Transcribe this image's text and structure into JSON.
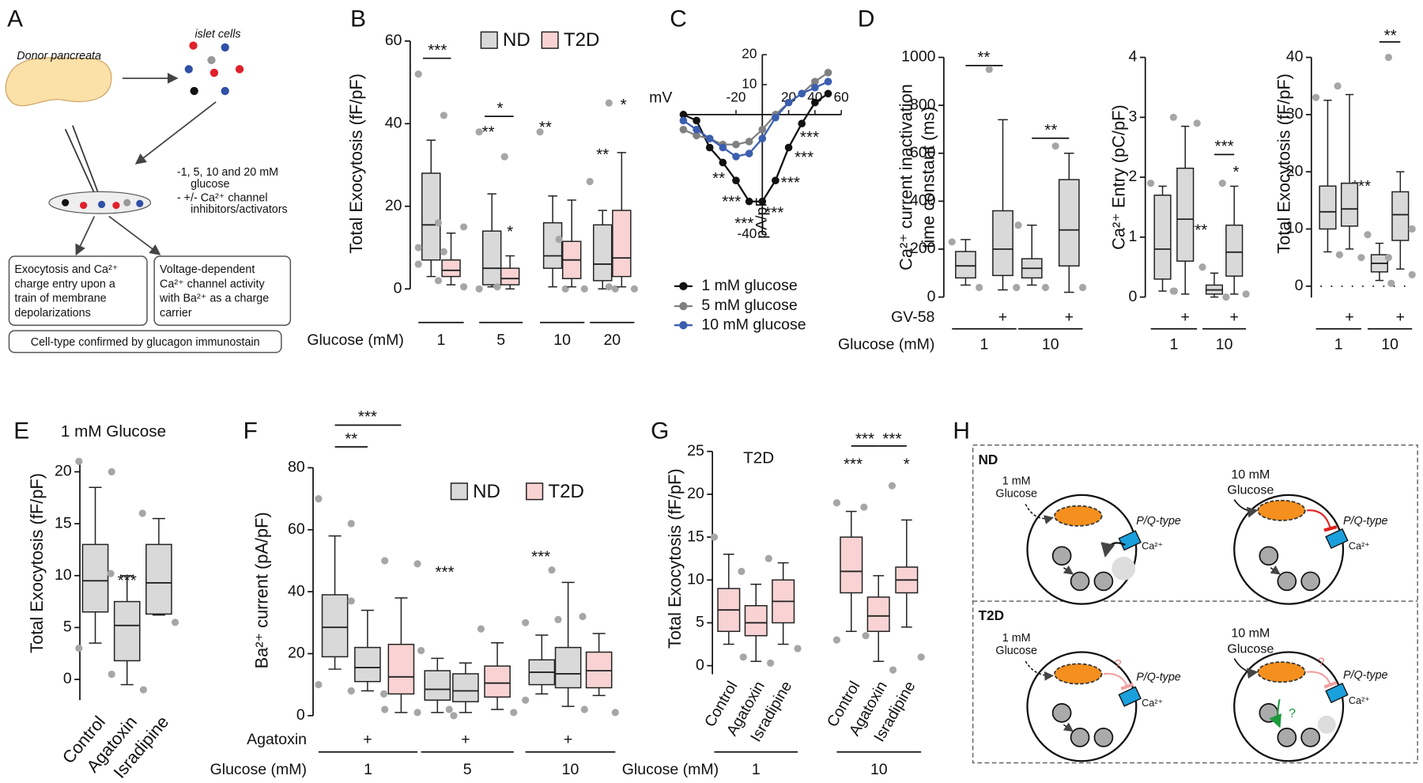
{
  "panel_a": {
    "label": "A",
    "pancreas": "Donor pancreata",
    "islets": "islet cells",
    "conditions": [
      "-1, 5, 10 and 20 mM",
      "glucose",
      "- +/- Ca²⁺ channel",
      "inhibitors/activators"
    ],
    "box_left": [
      "Exocytosis and Ca²⁺",
      "charge entry upon a",
      "train of membrane",
      "depolarizations"
    ],
    "box_right": [
      "Voltage-dependent",
      "Ca²⁺ channel activity",
      "with Ba²⁺ as a charge",
      "carrier"
    ],
    "box_bottom": "Cell-type confirmed by glucagon immunostain"
  },
  "panel_h": {
    "label": "H",
    "nd": "ND",
    "t2d": "T2D",
    "low_glucose": [
      "1 mM",
      "Glucose"
    ],
    "high_glucose": [
      "10 mM",
      "Glucose"
    ],
    "channel": "P/Q-type",
    "ion": "Ca²⁺",
    "unknown": "?"
  },
  "chart_data": [
    {
      "label": "B",
      "type": "box",
      "y_label": "Total Exocytosis (fF/pF)",
      "x_label": "Glucose (mM)",
      "categories": [
        "1",
        "5",
        "10",
        "20"
      ],
      "ylim": [
        0,
        60
      ],
      "yticks": [
        0,
        20,
        40,
        60
      ],
      "series": [
        {
          "name": "ND",
          "color": "#d9d9d9",
          "whisker_low": [
            3,
            0.5,
            0.5,
            0
          ],
          "q1": [
            7,
            1,
            5,
            2
          ],
          "median": [
            15.5,
            5,
            8,
            6
          ],
          "q3": [
            28,
            14,
            16,
            15.5
          ],
          "whisker_high": [
            36,
            23,
            22.5,
            19
          ],
          "outliers": [
            [
              52,
              42,
              10,
              9,
              6
            ],
            [
              38,
              32,
              0
            ],
            [
              38,
              0
            ],
            [
              26,
              0
            ]
          ]
        },
        {
          "name": "T2D",
          "color": "#f9d3d3",
          "whisker_low": [
            1,
            0,
            0.5,
            0.5
          ],
          "q1": [
            3,
            1,
            2.5,
            3
          ],
          "median": [
            4.5,
            2.5,
            7,
            7.5
          ],
          "q3": [
            7,
            5,
            11.5,
            19
          ],
          "whisker_high": [
            13.5,
            8,
            21.5,
            33
          ],
          "outliers": [
            [
              16,
              15,
              2,
              0.5
            ],
            [
              0.5
            ],
            [
              12,
              0
            ],
            [
              45,
              0,
              0.5
            ]
          ]
        }
      ],
      "annotations": [
        "***",
        "**",
        "*",
        "*",
        "**",
        "**",
        "*"
      ]
    },
    {
      "label": "C",
      "type": "line",
      "x_label": "mV",
      "y_label": "pA/pF",
      "x": [
        -60,
        -50,
        -40,
        -30,
        -20,
        -10,
        0,
        10,
        20,
        30,
        40,
        50
      ],
      "xlim": [
        -60,
        60
      ],
      "ylim": [
        -40,
        20
      ],
      "xticks": [
        -20,
        20,
        40,
        60
      ],
      "yticks": [
        -40,
        10,
        20
      ],
      "series": [
        {
          "name": "1 mM glucose",
          "color": "#111111",
          "values": [
            0,
            -2,
            -11,
            -16,
            -22,
            -29,
            -29,
            -22,
            -11,
            -3,
            4,
            7
          ]
        },
        {
          "name": "5 mM glucose",
          "color": "#808080",
          "values": [
            -5,
            -7,
            -8,
            -10,
            -10,
            -9,
            -5,
            0,
            4,
            7,
            11,
            14
          ]
        },
        {
          "name": "10 mM glucose",
          "color": "#3b5fb0",
          "values": [
            -2,
            -5,
            -8,
            -11,
            -14,
            -13,
            -8,
            -1,
            4,
            7,
            9,
            11
          ]
        }
      ],
      "annotations": [
        "**",
        "***",
        "***",
        "***",
        "***",
        "***",
        "***"
      ]
    },
    {
      "label": "D",
      "type": "box",
      "y_label": [
        "Ca²⁺ current inactivation",
        "time constant (ms)"
      ],
      "x_label": "Glucose (mM)",
      "treatment": "GV-58",
      "categories": [
        "1",
        "10"
      ],
      "ylim": [
        0,
        1000
      ],
      "yticks": [
        0,
        200,
        400,
        600,
        800,
        1000
      ],
      "series": [
        {
          "color": "#d9d9d9",
          "whisker_low": [
            50,
            50
          ],
          "q1": [
            80,
            80
          ],
          "median": [
            130,
            120
          ],
          "q3": [
            190,
            160
          ],
          "whisker_high": [
            240,
            300
          ],
          "outliers": [
            [
              230,
              40
            ],
            [
              300,
              40
            ]
          ]
        },
        {
          "color": "#d9d9d9",
          "marker": "+",
          "whisker_low": [
            30,
            20
          ],
          "q1": [
            90,
            130
          ],
          "median": [
            200,
            280
          ],
          "q3": [
            360,
            490
          ],
          "whisker_high": [
            740,
            600
          ],
          "outliers": [
            [
              950,
              40
            ],
            [
              630,
              40
            ]
          ]
        }
      ],
      "annotations": [
        "**",
        "**"
      ]
    },
    {
      "type": "box",
      "y_label": "Ca²⁺ Entry (pC/pF)",
      "categories": [
        "1",
        "10"
      ],
      "ylim": [
        0,
        4
      ],
      "yticks": [
        0,
        1,
        2,
        3,
        4
      ],
      "series": [
        {
          "color": "#d9d9d9",
          "whisker_low": [
            0.1,
            0
          ],
          "q1": [
            0.3,
            0.05
          ],
          "median": [
            0.8,
            0.12
          ],
          "q3": [
            1.7,
            0.2
          ],
          "whisker_high": [
            1.85,
            0.4
          ],
          "outliers": [
            [
              1.9,
              0.1
            ],
            [
              0.5,
              0
            ]
          ]
        },
        {
          "color": "#d9d9d9",
          "marker": "+",
          "whisker_low": [
            0.05,
            0.05
          ],
          "q1": [
            0.6,
            0.35
          ],
          "median": [
            1.3,
            0.75
          ],
          "q3": [
            2.15,
            1.2
          ],
          "whisker_high": [
            2.85,
            1.85
          ],
          "outliers": [
            [
              3,
              2.9,
              0.1
            ],
            [
              1.9,
              0.05
            ]
          ]
        }
      ],
      "annotations": [
        "***",
        "***",
        "*"
      ]
    },
    {
      "type": "box",
      "y_label": "Total Exocytosis (fF/pF)",
      "categories": [
        "1",
        "10"
      ],
      "ylim": [
        -2,
        40
      ],
      "yticks": [
        0,
        10,
        20,
        30,
        40
      ],
      "series": [
        {
          "color": "#d9d9d9",
          "whisker_low": [
            6,
            1
          ],
          "q1": [
            10,
            2.5
          ],
          "median": [
            13,
            4
          ],
          "q3": [
            17.5,
            5.5
          ],
          "whisker_high": [
            32.5,
            7.5
          ],
          "outliers": [
            [
              33,
              5.5
            ],
            [
              9,
              0.5
            ]
          ]
        },
        {
          "color": "#d9d9d9",
          "marker": "+",
          "whisker_low": [
            6.5,
            3
          ],
          "q1": [
            10.5,
            8
          ],
          "median": [
            13.5,
            12.5
          ],
          "q3": [
            18,
            16.5
          ],
          "whisker_high": [
            33.5,
            20
          ],
          "outliers": [
            [
              35,
              5
            ],
            [
              40,
              10,
              5,
              2
            ]
          ]
        }
      ],
      "annotations": [
        "***",
        "**"
      ]
    },
    {
      "label": "E",
      "type": "box",
      "title": "1 mM Glucose",
      "y_label": "Total Exocytosis (fF/pF)",
      "categories": [
        "Control",
        "Agatoxin",
        "Isradipine"
      ],
      "ylim": [
        -2,
        21
      ],
      "yticks": [
        0,
        5,
        10,
        15,
        20
      ],
      "series": [
        {
          "color": "#d9d9d9",
          "whisker_low": [
            3.5,
            -0.5,
            6.2
          ],
          "q1": [
            6.5,
            1.8,
            6.3
          ],
          "median": [
            9.5,
            5.2,
            9.3
          ],
          "q3": [
            13,
            7.5,
            13
          ],
          "whisker_high": [
            18.5,
            10,
            15.5
          ],
          "outliers": [
            [
              21,
              20,
              3,
              0.5
            ],
            [
              10.2,
              -1
            ],
            [
              16,
              5.5
            ]
          ]
        }
      ],
      "annotations": [
        "***"
      ]
    },
    {
      "label": "F",
      "type": "box",
      "y_label": "Ba²⁺ current (pA/pF)",
      "x_label": "Glucose (mM)",
      "treatment": "Agatoxin",
      "categories": [
        "1",
        "5",
        "10"
      ],
      "ylim": [
        0,
        80
      ],
      "yticks": [
        0,
        20,
        40,
        60,
        80
      ],
      "series": [
        {
          "name": "ND",
          "color": "#d9d9d9",
          "whisker_low": [
            15,
            1,
            7
          ],
          "q1": [
            19,
            5,
            10
          ],
          "median": [
            28.5,
            8.5,
            14
          ],
          "q3": [
            39,
            14.5,
            18
          ],
          "whisker_high": [
            58,
            18.5,
            26
          ],
          "outliers": [
            [
              70,
              62,
              10,
              8
            ],
            [
              21,
              0
            ],
            [
              30,
              31,
              5
            ]
          ]
        },
        {
          "color": "#d9d9d9",
          "marker": "+",
          "whisker_low": [
            8,
            1,
            3
          ],
          "q1": [
            11,
            4.5,
            9
          ],
          "median": [
            15.5,
            8,
            13.5
          ],
          "q3": [
            22,
            13.5,
            22
          ],
          "whisker_high": [
            34,
            17,
            43
          ],
          "outliers": [
            [
              37,
              7
            ],
            [
              2
            ],
            [
              47,
              2
            ]
          ]
        },
        {
          "name": "T2D",
          "color": "#f9d3d3",
          "whisker_low": [
            1,
            2,
            6.5
          ],
          "q1": [
            7,
            6,
            9
          ],
          "median": [
            12.5,
            10.5,
            14.5
          ],
          "q3": [
            23,
            16,
            20.5
          ],
          "whisker_high": [
            38,
            23.5,
            26.5
          ],
          "outliers": [
            [
              50,
              49,
              2,
              1
            ],
            [
              28,
              1
            ],
            [
              32,
              1
            ]
          ]
        }
      ],
      "annotations": [
        "**",
        "***",
        "***",
        "***"
      ]
    },
    {
      "label": "G",
      "type": "box",
      "title": "T2D",
      "y_label": "Total Exocytosis (fF/pF)",
      "x_label": "Glucose (mM)",
      "categories": [
        "1",
        "10"
      ],
      "ylim": [
        -1,
        25
      ],
      "yticks": [
        0,
        5,
        10,
        15,
        20,
        25
      ],
      "series": [
        {
          "name": "Control",
          "color": "#f9d3d3",
          "whisker_low": [
            2.5,
            4
          ],
          "q1": [
            4,
            8.5
          ],
          "median": [
            6.5,
            11
          ],
          "q3": [
            9,
            15
          ],
          "whisker_high": [
            13,
            18
          ],
          "outliers": [
            [
              15,
              1
            ],
            [
              19,
              3.5,
              3
            ]
          ]
        },
        {
          "name": "Agatoxin",
          "color": "#f9d3d3",
          "whisker_low": [
            0.5,
            0.5
          ],
          "q1": [
            3.5,
            4
          ],
          "median": [
            5,
            5.8
          ],
          "q3": [
            7,
            8
          ],
          "whisker_high": [
            9.5,
            10.5
          ],
          "outliers": [
            [
              11,
              0.3
            ],
            [
              18.5,
              -0.5
            ]
          ]
        },
        {
          "name": "Isradipine",
          "color": "#f9d3d3",
          "whisker_low": [
            2.5,
            4.5
          ],
          "q1": [
            5,
            8.5
          ],
          "median": [
            7.5,
            10
          ],
          "q3": [
            10,
            11.5
          ],
          "whisker_high": [
            12,
            17
          ],
          "outliers": [
            [
              12.5,
              2
            ],
            [
              21,
              1
            ]
          ]
        }
      ],
      "annotations": [
        "***",
        "***",
        "***",
        "*"
      ]
    }
  ]
}
